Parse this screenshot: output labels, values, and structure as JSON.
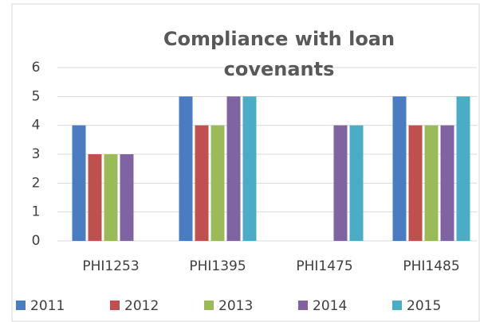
{
  "chart_data": {
    "type": "bar",
    "title": "Compliance with loan covenants",
    "categories": [
      "PHI1253",
      "PHI1395",
      "PHI1475",
      "PHI1485"
    ],
    "series": [
      {
        "name": "2011",
        "color": "#4a7cc2",
        "values": [
          4,
          5,
          null,
          5
        ]
      },
      {
        "name": "2012",
        "color": "#c0504d",
        "values": [
          3,
          4,
          null,
          4
        ]
      },
      {
        "name": "2013",
        "color": "#9bbb59",
        "values": [
          3,
          4,
          null,
          4
        ]
      },
      {
        "name": "2014",
        "color": "#8064a2",
        "values": [
          3,
          5,
          4,
          4
        ]
      },
      {
        "name": "2015",
        "color": "#4bacc6",
        "values": [
          null,
          5,
          4,
          5
        ]
      }
    ],
    "ylim": [
      0,
      6
    ],
    "yticks": [
      0,
      1,
      2,
      3,
      4,
      5,
      6
    ],
    "grid": true,
    "legend": "bottom"
  }
}
